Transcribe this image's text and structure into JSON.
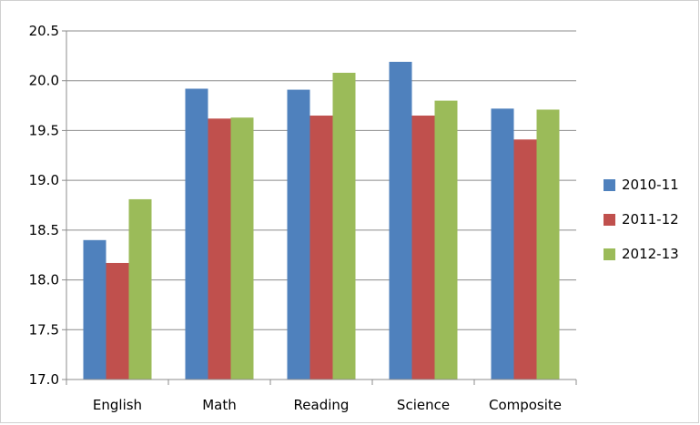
{
  "chart_data": {
    "type": "bar",
    "title": "",
    "xlabel": "",
    "ylabel": "",
    "categories": [
      "English",
      "Math",
      "Reading",
      "Science",
      "Composite"
    ],
    "ylim": [
      17.0,
      20.5
    ],
    "yticks": [
      17.0,
      17.5,
      18.0,
      18.5,
      19.0,
      19.5,
      20.0,
      20.5
    ],
    "ytick_labels": [
      "17.0",
      "17.5",
      "18.0",
      "18.5",
      "19.0",
      "19.5",
      "20.0",
      "20.5"
    ],
    "grid": true,
    "legend_position": "right",
    "series": [
      {
        "name": "2010-11",
        "color": "#4F81BD",
        "values": [
          18.4,
          19.92,
          19.91,
          20.19,
          19.72
        ]
      },
      {
        "name": "2011-12",
        "color": "#C0504D",
        "values": [
          18.17,
          19.62,
          19.65,
          19.65,
          19.41
        ]
      },
      {
        "name": "2012-13",
        "color": "#9BBB59",
        "values": [
          18.81,
          19.63,
          20.08,
          19.8,
          19.71
        ]
      }
    ]
  }
}
